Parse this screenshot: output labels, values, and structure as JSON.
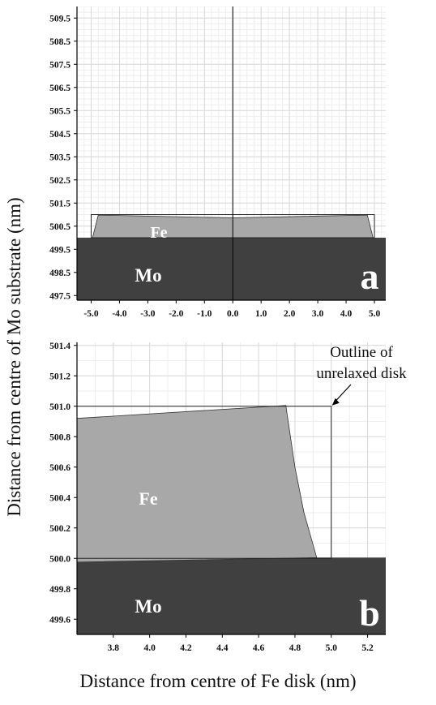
{
  "figure": {
    "ylabel": "Distance from centre of Mo substrate (nm)",
    "xlabel": "Distance from centre of Fe disk (nm)"
  },
  "chart_data": [
    {
      "type": "area",
      "panel": "a",
      "xlim": [
        -5.5,
        5.4
      ],
      "ylim": [
        497.3,
        510.0
      ],
      "grid": true,
      "x_ticks": [
        "-5.0",
        "-4.0",
        "-3.0",
        "-2.0",
        "-1.0",
        "0.0",
        "1.0",
        "2.0",
        "3.0",
        "4.0",
        "5.0"
      ],
      "y_ticks": [
        "497.5",
        "498.5",
        "499.5",
        "500.5",
        "501.5",
        "502.5",
        "503.5",
        "504.5",
        "505.5",
        "506.5",
        "507.5",
        "508.5",
        "509.5"
      ],
      "regions": [
        {
          "name": "Mo",
          "label": "Mo",
          "color": "#404040",
          "polygon": [
            [
              -5.5,
              497.3
            ],
            [
              5.4,
              497.3
            ],
            [
              5.4,
              500.0
            ],
            [
              -5.5,
              500.0
            ]
          ]
        },
        {
          "name": "Fe",
          "label": "Fe",
          "color": "#a8a8a8",
          "polygon": [
            [
              -4.95,
              500.0
            ],
            [
              -4.75,
              500.98
            ],
            [
              0.0,
              500.86
            ],
            [
              4.75,
              500.98
            ],
            [
              4.95,
              500.0
            ]
          ]
        }
      ],
      "outline": {
        "x": [
          -5.0,
          5.0
        ],
        "y": [
          500.0,
          501.0
        ]
      },
      "centre_line_x": 0.0
    },
    {
      "type": "area",
      "panel": "b",
      "xlim": [
        3.6,
        5.3
      ],
      "ylim": [
        499.5,
        501.42
      ],
      "grid": true,
      "x_ticks": [
        "3.8",
        "4.0",
        "4.2",
        "4.4",
        "4.6",
        "4.8",
        "5.0",
        "5.2"
      ],
      "y_ticks": [
        "499.6",
        "499.8",
        "500.0",
        "500.2",
        "500.4",
        "500.6",
        "500.8",
        "501.0",
        "501.2",
        "501.4"
      ],
      "regions": [
        {
          "name": "Mo",
          "label": "Mo",
          "color": "#404040",
          "polygon": [
            [
              3.6,
              499.5
            ],
            [
              5.3,
              499.5
            ],
            [
              5.3,
              500.005
            ],
            [
              4.92,
              500.005
            ],
            [
              3.6,
              499.975
            ]
          ]
        },
        {
          "name": "Fe",
          "label": "Fe",
          "color": "#a8a8a8",
          "polygon": [
            [
              3.6,
              500.92
            ],
            [
              4.75,
              501.005
            ],
            [
              4.8,
              500.6
            ],
            [
              4.85,
              500.3
            ],
            [
              4.92,
              500.005
            ],
            [
              3.6,
              499.975
            ]
          ]
        }
      ],
      "outline": {
        "x": [
          3.6,
          5.0
        ],
        "y": [
          500.0,
          501.0
        ]
      },
      "annotation": {
        "text_lines": [
          "Outline of",
          "unrelaxed disk"
        ]
      }
    }
  ]
}
